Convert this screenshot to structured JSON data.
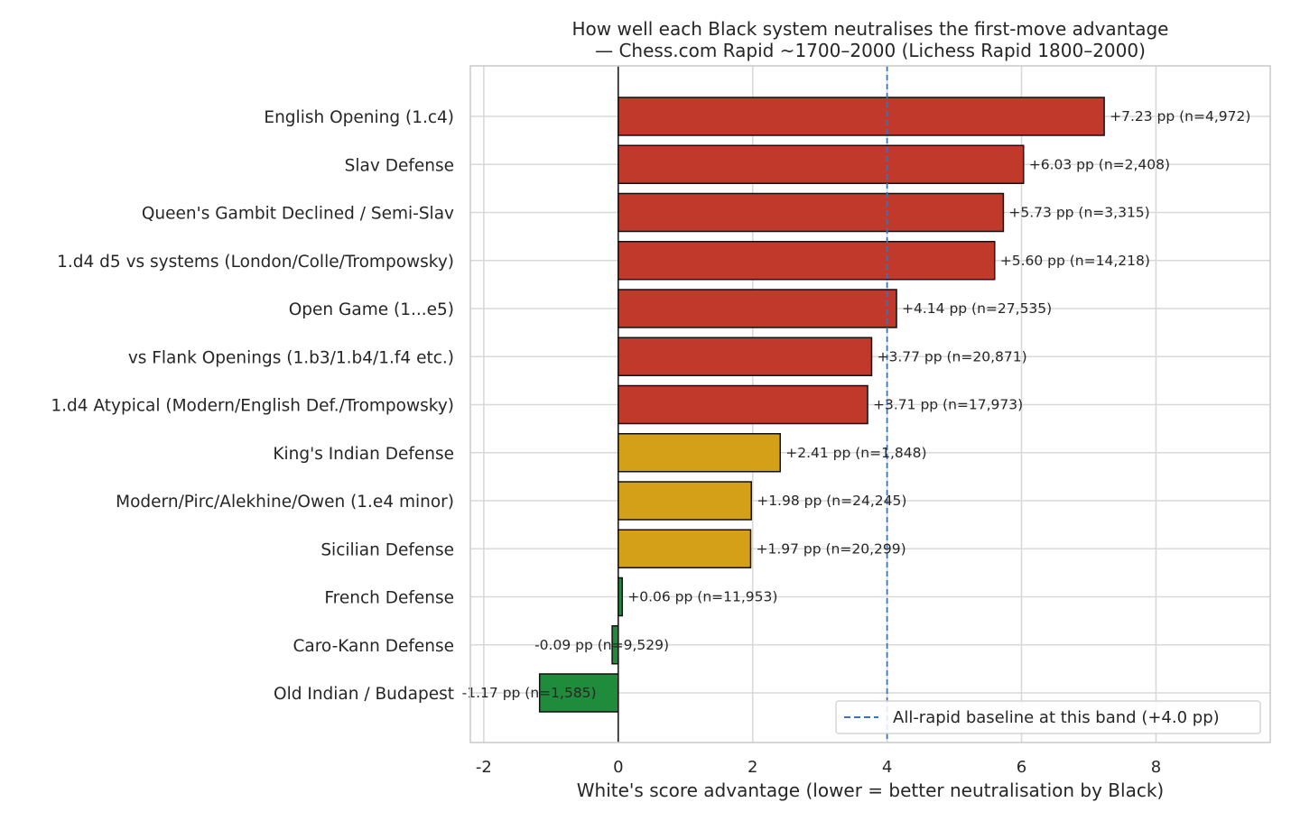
{
  "chart_data": {
    "type": "bar",
    "orientation": "horizontal",
    "title": "How well each Black system neutralises the first-move advantage",
    "subtitle": "— Chess.com Rapid ~1700–2000 (Lichess Rapid 1800–2000)",
    "xlabel": "White's score advantage (lower = better neutralisation by Black)",
    "ylabel": "",
    "xlim": [
      -2.2,
      9.7
    ],
    "xticks": [
      -2,
      0,
      2,
      4,
      6,
      8
    ],
    "xtick_labels": [
      "-2",
      "0",
      "2",
      "4",
      "6",
      "8"
    ],
    "grid": true,
    "categories": [
      "English Opening (1.c4)",
      "Slav Defense",
      "Queen's Gambit Declined / Semi-Slav",
      "1.d4 d5 vs systems (London/Colle/Trompowsky)",
      "Open Game (1...e5)",
      "vs Flank Openings (1.b3/1.b4/1.f4 etc.)",
      "1.d4 Atypical (Modern/English Def./Trompowsky)",
      "King's Indian Defense",
      "Modern/Pirc/Alekhine/Owen (1.e4 minor)",
      "Sicilian Defense",
      "French Defense",
      "Caro-Kann Defense",
      "Old Indian / Budapest"
    ],
    "values": [
      7.23,
      6.03,
      5.73,
      5.6,
      4.14,
      3.77,
      3.71,
      2.41,
      1.98,
      1.97,
      0.06,
      -0.09,
      -1.17
    ],
    "bar_labels": [
      "+7.23 pp  (n=4,972)",
      "+6.03 pp  (n=2,408)",
      "+5.73 pp  (n=3,315)",
      "+5.60 pp  (n=14,218)",
      "+4.14 pp  (n=27,535)",
      "+3.77 pp  (n=20,871)",
      "+3.71 pp  (n=17,973)",
      "+2.41 pp  (n=1,848)",
      "+1.98 pp  (n=24,245)",
      "+1.97 pp  (n=20,299)",
      "+0.06 pp  (n=11,953)",
      "-0.09 pp  (n=9,529)",
      "-1.17 pp  (n=1,585)"
    ],
    "bar_colors": [
      "#c0392b",
      "#c0392b",
      "#c0392b",
      "#c0392b",
      "#c0392b",
      "#c0392b",
      "#c0392b",
      "#d4a017",
      "#d4a017",
      "#d4a017",
      "#1e8c3a",
      "#1e8c3a",
      "#1e8c3a"
    ],
    "baseline": {
      "value": 4.0,
      "label": "All-rapid baseline at this band (+4.0 pp)",
      "color": "#3a73b8",
      "style": "dashed"
    },
    "legend_position": "lower-right"
  }
}
